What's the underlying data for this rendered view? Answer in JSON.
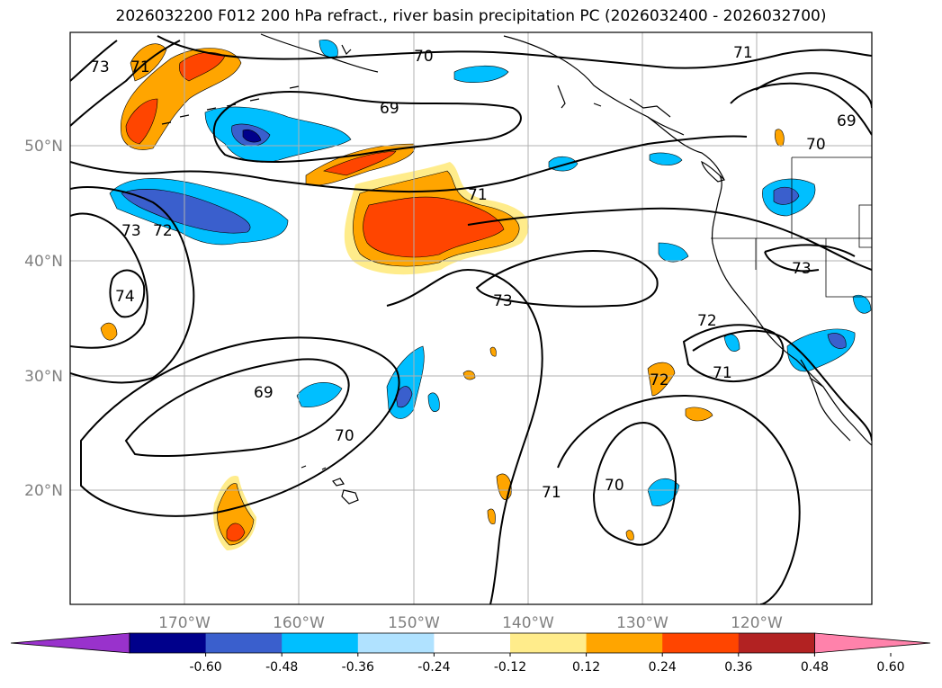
{
  "title": "2026032200 F012 200 hPa refract., river basin precipitation PC (2026032400 - 2026032700)",
  "lon_labels": [
    "170°W",
    "160°W",
    "150°W",
    "140°W",
    "130°W",
    "120°W"
  ],
  "lat_labels": [
    "50°N",
    "40°N",
    "30°N",
    "20°N"
  ],
  "colorbar": {
    "labels": [
      "-0.60",
      "-0.48",
      "-0.36",
      "-0.24",
      "-0.12",
      "0.12",
      "0.24",
      "0.36",
      "0.48",
      "0.60"
    ],
    "colors": [
      "#9932cc",
      "#00008b",
      "#3a5fcd",
      "#00bfff",
      "#b0e2ff",
      "#ffffff",
      "#ffec8b",
      "#ffa500",
      "#ff4500",
      "#b22222",
      "#ff82ab"
    ]
  },
  "contour_labels": [
    "73",
    "71",
    "70",
    "69",
    "71",
    "73",
    "72",
    "74",
    "69",
    "70",
    "71",
    "73",
    "72",
    "71",
    "72",
    "70",
    "71",
    "73",
    "69",
    "70"
  ]
}
